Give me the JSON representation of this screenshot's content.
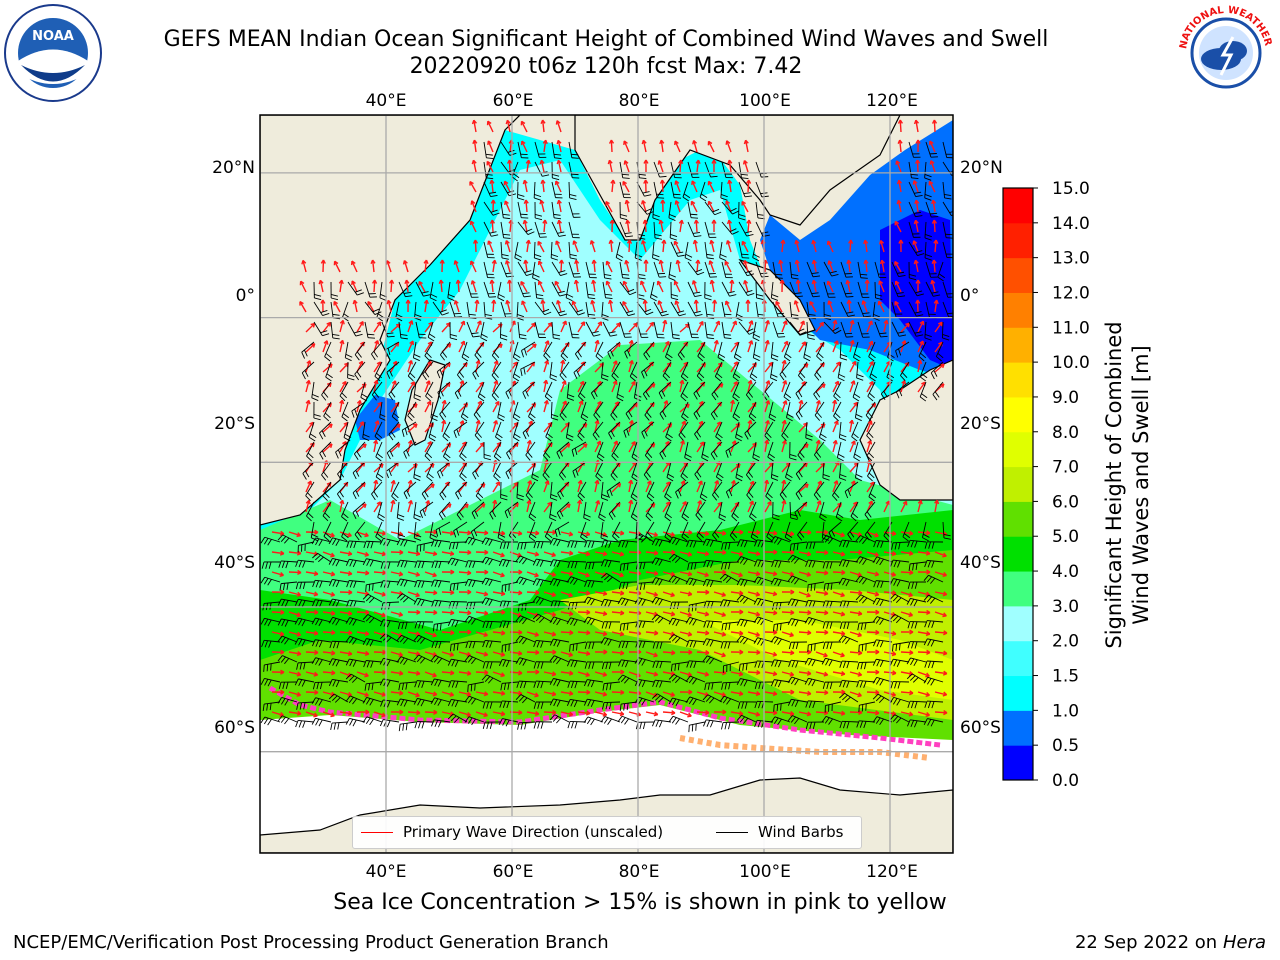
{
  "header": {
    "title_line1": "GEFS MEAN Indian Ocean Significant Height of Combined Wind Waves and Swell",
    "title_line2": "20220920 t06z 120h fcst   Max: 7.42"
  },
  "logos": {
    "left": {
      "icon": "noaa-logo",
      "text": "NOAA"
    },
    "right": {
      "icon": "national-weather-service-logo",
      "text": "NATIONAL WEATHER SERVICE"
    }
  },
  "map": {
    "lon_ticks_top": [
      "40°E",
      "60°E",
      "80°E",
      "100°E",
      "120°E"
    ],
    "lon_ticks_bottom": [
      "40°E",
      "60°E",
      "80°E",
      "100°E",
      "120°E"
    ],
    "lat_ticks_left": [
      "20°N",
      "0°",
      "20°S",
      "40°S",
      "60°S"
    ],
    "lat_ticks_right": [
      "20°N",
      "0°",
      "20°S",
      "40°S",
      "60°S"
    ],
    "lon_range": [
      20,
      130
    ],
    "lat_range": [
      -74,
      28
    ],
    "grid": true,
    "land_color": "#efecdc",
    "ice_color_note": "pink to yellow",
    "legend": [
      {
        "label": "Primary Wave Direction (unscaled)",
        "color": "#ff0000"
      },
      {
        "label": "Wind Barbs",
        "color": "#000000"
      }
    ]
  },
  "colorbar": {
    "label_line1": "Significant Height of Combined",
    "label_line2": "Wind Waves and Swell [m]",
    "ticks": [
      "0.0",
      "0.5",
      "1.0",
      "1.5",
      "2.0",
      "3.0",
      "4.0",
      "5.0",
      "6.0",
      "7.0",
      "8.0",
      "9.0",
      "10.0",
      "11.0",
      "12.0",
      "13.0",
      "14.0",
      "15.0"
    ],
    "colors": [
      "#0000ff",
      "#0070ff",
      "#00ffff",
      "#40ffff",
      "#a0ffff",
      "#40ff80",
      "#00e000",
      "#60e000",
      "#c0f000",
      "#e0ff00",
      "#ffff00",
      "#ffe000",
      "#ffb000",
      "#ff8000",
      "#ff5000",
      "#ff2000",
      "#ff0000"
    ]
  },
  "footer": {
    "note": "Sea Ice Concentration > 15% is shown in pink to yellow",
    "credit": "NCEP/EMC/Verification Post Processing Product Generation Branch",
    "date_prefix": "22 Sep 2022 on",
    "machine": "Hera"
  }
}
